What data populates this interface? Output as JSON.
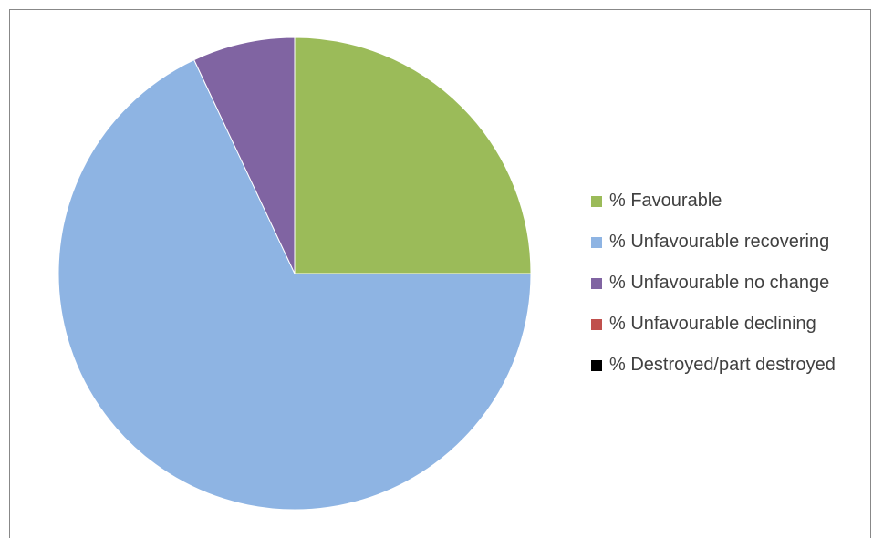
{
  "chart_data": {
    "type": "pie",
    "start_angle_deg": 0,
    "direction": "clockwise",
    "legend_position": "right",
    "slices": [
      {
        "label": "% Favourable",
        "value": 25,
        "color": "#9BBB59"
      },
      {
        "label": "% Unfavourable recovering",
        "value": 68,
        "color": "#8EB4E3"
      },
      {
        "label": "% Unfavourable no change",
        "value": 7,
        "color": "#8064A2"
      },
      {
        "label": "% Unfavourable declining",
        "value": 0,
        "color": "#C0504D"
      },
      {
        "label": "% Destroyed/part destroyed",
        "value": 0,
        "color": "#000000"
      }
    ]
  }
}
